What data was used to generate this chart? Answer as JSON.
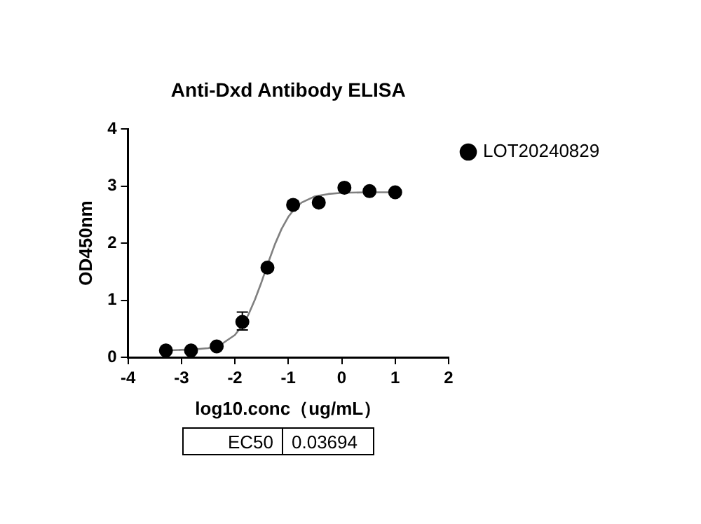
{
  "chart_data": {
    "type": "scatter",
    "title": "Anti-Dxd Antibody ELISA",
    "xlabel": "log10.conc（ug/mL）",
    "ylabel": "OD450nm",
    "series": [
      {
        "name": "LOT20240829",
        "color": "#000000",
        "x": [
          -3.29,
          -2.82,
          -2.34,
          -1.86,
          -1.39,
          -0.91,
          -0.43,
          0.05,
          0.52,
          1.0
        ],
        "values": [
          0.12,
          0.12,
          0.19,
          0.62,
          1.57,
          2.67,
          2.71,
          2.97,
          2.91,
          2.89
        ],
        "errors": [
          null,
          null,
          null,
          [
            0.48,
            0.79
          ],
          null,
          [
            2.6,
            2.74
          ],
          null,
          null,
          null,
          null
        ],
        "marker": "circle"
      },
      {
        "type": "line",
        "color": "#808080",
        "marker": "none",
        "x": [
          -3.3,
          -3.0,
          -2.75,
          -2.5,
          -2.25,
          -2.0,
          -1.875,
          -1.75,
          -1.625,
          -1.5,
          -1.375,
          -1.25,
          -1.125,
          -1.0,
          -0.875,
          -0.75,
          -0.5,
          -0.25,
          0,
          0.5,
          1.0
        ],
        "values": [
          0.12,
          0.13,
          0.14,
          0.16,
          0.23,
          0.39,
          0.54,
          0.74,
          1.01,
          1.32,
          1.66,
          1.98,
          2.25,
          2.46,
          2.61,
          2.71,
          2.82,
          2.86,
          2.88,
          2.89,
          2.89
        ]
      }
    ],
    "xlim": [
      -4,
      2
    ],
    "xticks": [
      -4,
      -3,
      -2,
      -1,
      0,
      1,
      2
    ],
    "ylim": [
      0,
      4
    ],
    "yticks": [
      0,
      1,
      2,
      3,
      4
    ],
    "grid": false,
    "legend": "top right",
    "annotations": [
      "EC50",
      "0.03694"
    ]
  }
}
